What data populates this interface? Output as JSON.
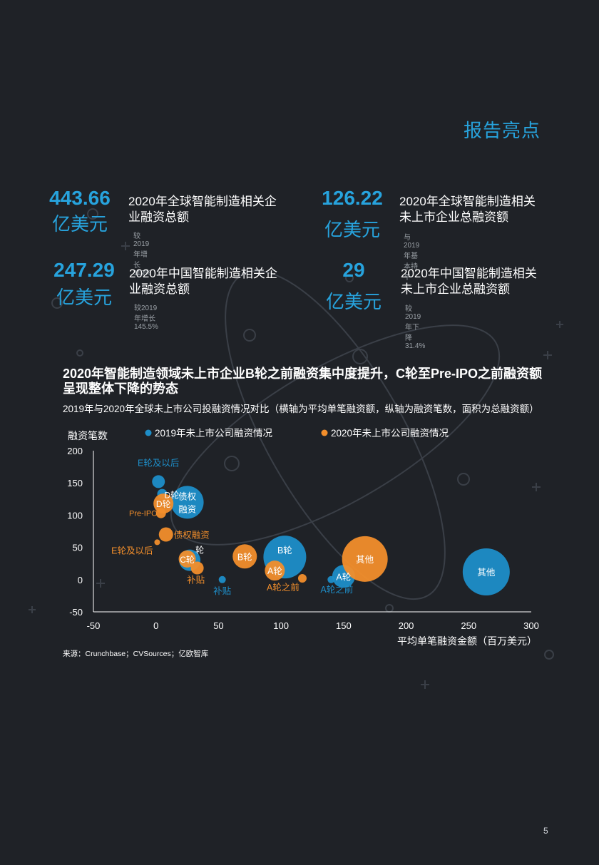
{
  "section_title": "报告亮点",
  "stats": [
    {
      "value": "443.66",
      "unit": "亿美元",
      "line1": "2020年全球智能制造相关企",
      "line2": "业融资总额",
      "note": "较2019年增长119%"
    },
    {
      "value": "126.22",
      "unit": "亿美元",
      "line1": "2020年全球智能制造相关",
      "line2": "未上市企业总融资额",
      "note": "与2019年基本持平"
    },
    {
      "value": "247.29",
      "unit": "亿美元",
      "line1": "2020年中国智能制造相关企",
      "line2": "业融资总额",
      "note": "较2019年增长145.5%"
    },
    {
      "value": "29",
      "unit": "亿美元",
      "line1": "2020年中国智能制造相关",
      "line2": "未上市企业总融资额",
      "note": "较2019年下降31.4%"
    }
  ],
  "chart_heading": "2020年智能制造领域未上市企业B轮之前融资集中度提升，C轮至Pre-IPO之前融资额呈现整体下降的势态",
  "chart_subtitle": "2019年与2020年全球未上市公司投融资情况对比（横轴为平均单笔融资额，纵轴为融资笔数，面积为总融资额）",
  "source": "来源：Crunchbase；CVSources；亿欧智库",
  "page_number": "5",
  "chart_data": {
    "type": "scatter",
    "xlabel": "平均单笔融资金额（百万美元）",
    "ylabel": "融资笔数",
    "xlim": [
      -50,
      300
    ],
    "ylim": [
      -50,
      200
    ],
    "xticks": [
      "-50",
      "0",
      "50",
      "100",
      "150",
      "200",
      "250",
      "300"
    ],
    "yticks": [
      "200",
      "150",
      "100",
      "50",
      "0",
      "-50"
    ],
    "legend_position": "top",
    "series": [
      {
        "name": "2019年未上市公司融资情况",
        "color": "#1e8ec8",
        "points": [
          {
            "label": "E轮及以后",
            "x": 2,
            "y": 152,
            "r": 9
          },
          {
            "label": "D轮",
            "x": 5,
            "y": 133,
            "r": 7
          },
          {
            "label": "债权融资",
            "x": 25,
            "y": 120,
            "r": 23
          },
          {
            "label": "C轮",
            "x": 27,
            "y": 30,
            "r": 15
          },
          {
            "label": "补贴",
            "x": 53,
            "y": 0,
            "r": 5
          },
          {
            "label": "B轮",
            "x": 103,
            "y": 35,
            "r": 30
          },
          {
            "label": "A轮之前",
            "x": 140,
            "y": 0,
            "r": 5
          },
          {
            "label": "A轮",
            "x": 150,
            "y": 5,
            "r": 16
          },
          {
            "label": "其他",
            "x": 264,
            "y": 12,
            "r": 33
          }
        ]
      },
      {
        "name": "2020年未上市公司融资情况",
        "color": "#f28e2b",
        "points": [
          {
            "label": "D轮",
            "x": 6,
            "y": 118,
            "r": 14
          },
          {
            "label": "Pre-IPO",
            "x": 4,
            "y": 103,
            "r": 7
          },
          {
            "label": "债权融资",
            "x": 8,
            "y": 70,
            "r": 10
          },
          {
            "label": "E轮及以后",
            "x": 1,
            "y": 58,
            "r": 4
          },
          {
            "label": "C轮",
            "x": 25,
            "y": 32,
            "r": 12
          },
          {
            "label": "补贴",
            "x": 33,
            "y": 18,
            "r": 9
          },
          {
            "label": "B轮",
            "x": 71,
            "y": 36,
            "r": 17
          },
          {
            "label": "A轮",
            "x": 95,
            "y": 14,
            "r": 14
          },
          {
            "label": "A轮之前",
            "x": 117,
            "y": 2,
            "r": 6
          },
          {
            "label": "其他",
            "x": 167,
            "y": 32,
            "r": 32
          }
        ]
      }
    ]
  }
}
